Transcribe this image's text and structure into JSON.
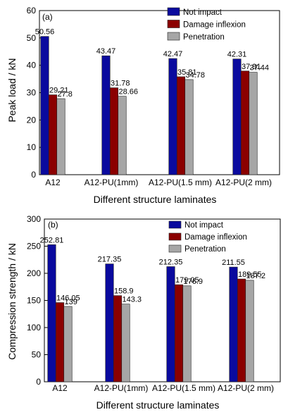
{
  "series_colors": [
    "#0a0a9e",
    "#8b0000",
    "#a6a6a6"
  ],
  "chart_data": [
    {
      "type": "bar",
      "panel_label": "(a)",
      "categories": [
        "A12",
        "A12-PU(1mm)",
        "A12-PU(1.5 mm)",
        "A12-PU(2 mm)"
      ],
      "series": [
        {
          "name": "Not impact",
          "values": [
            50.56,
            43.47,
            42.47,
            42.31
          ],
          "labels": [
            "50.56",
            "43.47",
            "42.47",
            "42.31"
          ]
        },
        {
          "name": "Damage inflexion",
          "values": [
            29.21,
            31.78,
            35.81,
            37.91
          ],
          "labels": [
            "29.21",
            "31.78",
            "35.81",
            "37.91"
          ]
        },
        {
          "name": "Penetration",
          "values": [
            27.8,
            28.66,
            34.78,
            37.44
          ],
          "labels": [
            "27.8",
            "28.66",
            "34.78",
            "37.44"
          ]
        }
      ],
      "xlabel": "Different structure laminates",
      "ylabel": "Peak load / kN",
      "ylim": [
        0,
        60
      ],
      "yticks": [
        0,
        10,
        20,
        30,
        40,
        50,
        60
      ],
      "grid": false,
      "legend": "top-right"
    },
    {
      "type": "bar",
      "panel_label": "(b)",
      "categories": [
        "A12",
        "A12-PU(1mm)",
        "A12-PU(1.5 mm)",
        "A12-PU(2 mm)"
      ],
      "series": [
        {
          "name": "Not impact",
          "values": [
            252.81,
            217.35,
            212.35,
            211.55
          ],
          "labels": [
            "252.81",
            "217.35",
            "212.35",
            "211.55"
          ]
        },
        {
          "name": "Damage inflexion",
          "values": [
            146.05,
            158.9,
            179.05,
            189.55
          ],
          "labels": [
            "146.05",
            "158.9",
            "179.05",
            "189.55"
          ]
        },
        {
          "name": "Penetration",
          "values": [
            139,
            143.3,
            176.9,
            187.2
          ],
          "labels": [
            "139",
            "143.3",
            "176.9",
            "187.2"
          ]
        }
      ],
      "xlabel": "Different structure laminates",
      "ylabel": "Compression strength / kN",
      "ylim": [
        0,
        300
      ],
      "yticks": [
        0,
        50,
        100,
        150,
        200,
        250,
        300
      ],
      "grid": false,
      "legend": "top-right"
    }
  ]
}
